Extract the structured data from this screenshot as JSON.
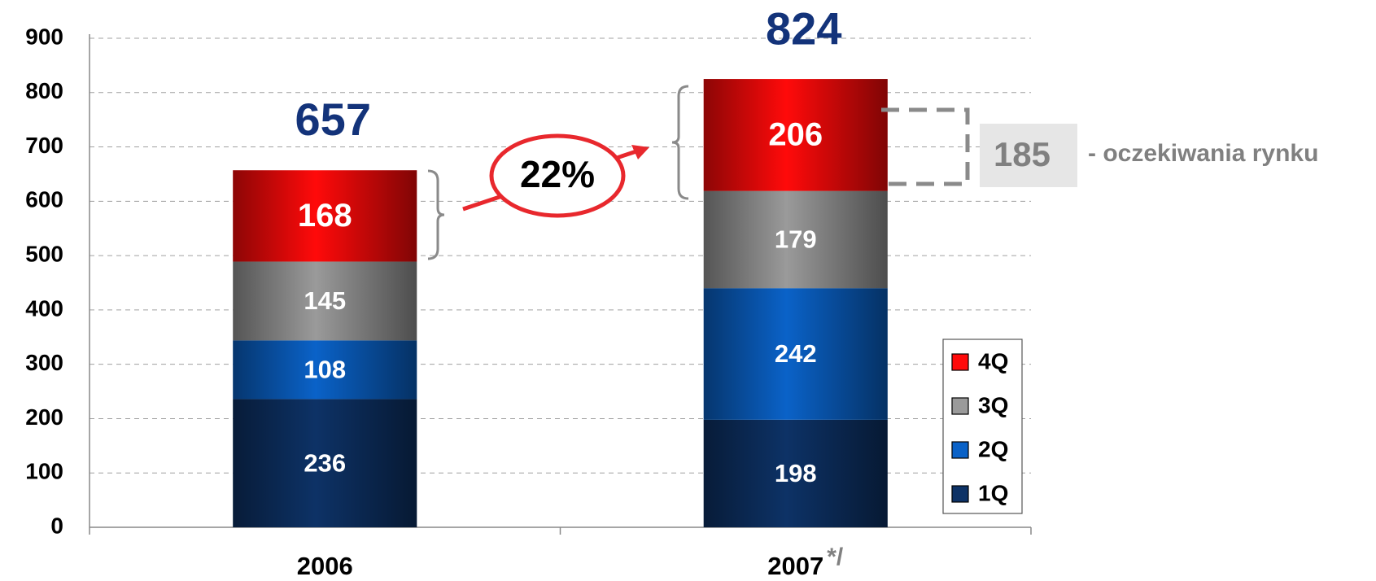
{
  "chart_data": {
    "type": "stacked_bar",
    "categories": [
      "2006",
      "2007"
    ],
    "category_note": "*/",
    "series": [
      {
        "name": "1Q",
        "color": "#0d3266",
        "values": [
          236,
          198
        ]
      },
      {
        "name": "2Q",
        "color": "#0a62c8",
        "values": [
          108,
          242
        ]
      },
      {
        "name": "3Q",
        "color": "#9a9a9a",
        "values": [
          145,
          179
        ]
      },
      {
        "name": "4Q",
        "color": "#ff0a0a",
        "values": [
          168,
          206
        ]
      }
    ],
    "totals": [
      657,
      824
    ],
    "growth_label": "22%",
    "expectation_value": 185,
    "expectation_label": "- oczekiwania rynku",
    "ylim": [
      0,
      900
    ],
    "yticks": [
      0,
      100,
      200,
      300,
      400,
      500,
      600,
      700,
      800,
      900
    ],
    "grid": true,
    "legend": "lower right"
  }
}
